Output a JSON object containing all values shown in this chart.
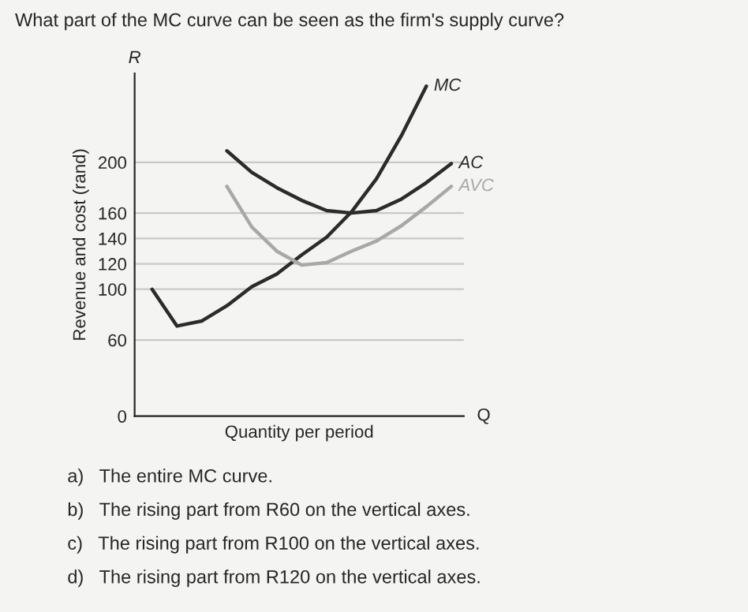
{
  "chart_data": {
    "type": "line",
    "title": "What part of the MC curve can be seen as the firm's supply curve?",
    "xlabel": "Quantity per period",
    "ylabel": "Revenue and cost (rand)",
    "categories": [
      null,
      null,
      null,
      null,
      null,
      null,
      null,
      null,
      null,
      null,
      null,
      null,
      null
    ],
    "series": [
      {
        "name": "MC",
        "color": "#2b2b2b",
        "values": [
          100,
          71,
          75,
          87,
          102,
          112,
          127,
          141,
          161,
          187,
          221,
          260,
          null
        ]
      },
      {
        "name": "AC",
        "color": "#2b2b2b",
        "values": [
          null,
          null,
          null,
          209,
          192,
          180,
          170,
          162,
          160,
          162,
          171,
          184,
          199
        ]
      },
      {
        "name": "AVC",
        "color": "#a8a8a8",
        "values": [
          null,
          null,
          null,
          181,
          149,
          130,
          119,
          121,
          130,
          138,
          150,
          165,
          181
        ]
      }
    ],
    "ylim": [
      0,
      270
    ],
    "yticks": [
      0,
      60,
      100,
      120,
      140,
      160,
      200
    ],
    "grid": "y",
    "tick_labels": "y",
    "legend": false,
    "marker": "none",
    "line_style": "solid",
    "annotations": [
      "R",
      "Q",
      "a)   The entire MC curve.",
      "b)   The rising part from R60 on the vertical axes.",
      "c)   The rising part from R100 on the vertical axes.",
      "d)   The rising part from R120 on the vertical axes."
    ]
  }
}
